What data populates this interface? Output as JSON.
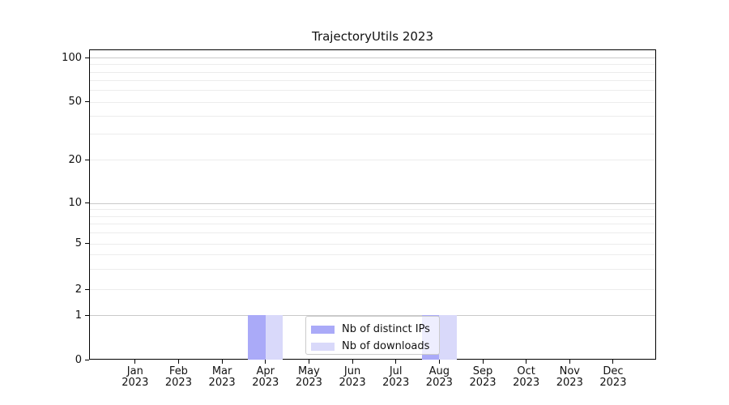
{
  "chart_data": {
    "type": "bar",
    "title": "TrajectoryUtils 2023",
    "categories": [
      "Jan",
      "Feb",
      "Mar",
      "Apr",
      "May",
      "Jun",
      "Jul",
      "Aug",
      "Sep",
      "Oct",
      "Nov",
      "Dec"
    ],
    "x_year_label": "2023",
    "series": [
      {
        "name": "Nb of distinct IPs",
        "color": "#aaaaf8",
        "values": [
          0,
          0,
          0,
          1,
          0,
          0,
          0,
          1,
          0,
          0,
          0,
          0
        ]
      },
      {
        "name": "Nb of downloads",
        "color": "#d9d9fa",
        "values": [
          0,
          0,
          0,
          1,
          0,
          0,
          0,
          1,
          0,
          0,
          0,
          0
        ]
      }
    ],
    "yticks": [
      0,
      1,
      2,
      5,
      10,
      20,
      50,
      100
    ],
    "major_gridlines": [
      1,
      10,
      100
    ],
    "minor_gridlines": [
      2,
      3,
      4,
      5,
      6,
      7,
      8,
      9,
      20,
      30,
      40,
      50,
      60,
      70,
      80,
      90
    ],
    "ylim": [
      0,
      110
    ],
    "scale": "symlog",
    "grid": true,
    "legend_position": "lower center",
    "xlabel": "",
    "ylabel": ""
  }
}
